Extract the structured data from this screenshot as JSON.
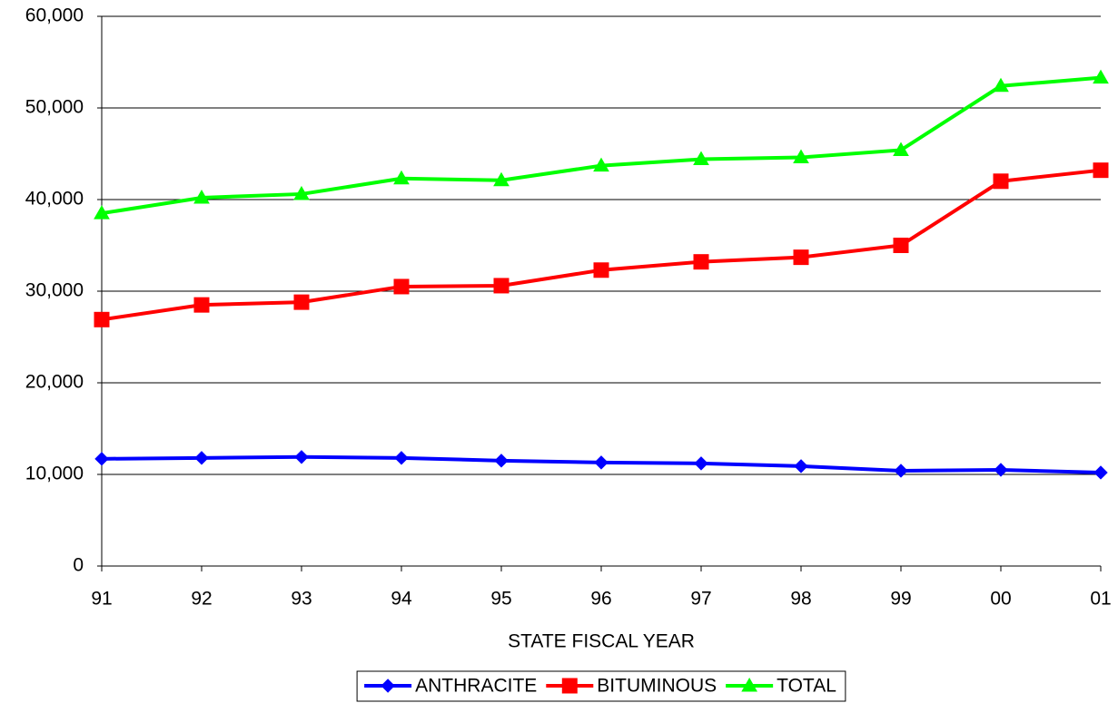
{
  "chart_data": {
    "type": "line",
    "x_label": "STATE FISCAL YEAR",
    "categories": [
      "91",
      "92",
      "93",
      "94",
      "95",
      "96",
      "97",
      "98",
      "99",
      "00",
      "01"
    ],
    "series": [
      {
        "name": "ANTHRACITE",
        "color": "#0000ff",
        "marker": "diamond",
        "values": [
          11700,
          11800,
          11900,
          11800,
          11500,
          11300,
          11200,
          10900,
          10400,
          10500,
          10200
        ]
      },
      {
        "name": "BITUMINOUS",
        "color": "#ff0000",
        "marker": "square",
        "values": [
          26900,
          28500,
          28800,
          30500,
          30600,
          32300,
          33200,
          33700,
          35000,
          42000,
          43200
        ]
      },
      {
        "name": "TOTAL",
        "color": "#00ff00",
        "marker": "triangle",
        "values": [
          38500,
          40200,
          40600,
          42300,
          42100,
          43700,
          44400,
          44600,
          45400,
          52400,
          53300
        ]
      }
    ],
    "ylim": [
      0,
      60000
    ],
    "yticks": [
      0,
      {
        "value": 10000,
        "label": "10,000"
      },
      {
        "value": 20000,
        "label": "20,000"
      },
      {
        "value": 30000,
        "label": "30,000"
      },
      {
        "value": 40000,
        "label": "40,000"
      },
      {
        "value": 50000,
        "label": "50,000"
      },
      {
        "value": 60000,
        "label": "60,000"
      }
    ],
    "grid": true,
    "legend": "bottom"
  }
}
